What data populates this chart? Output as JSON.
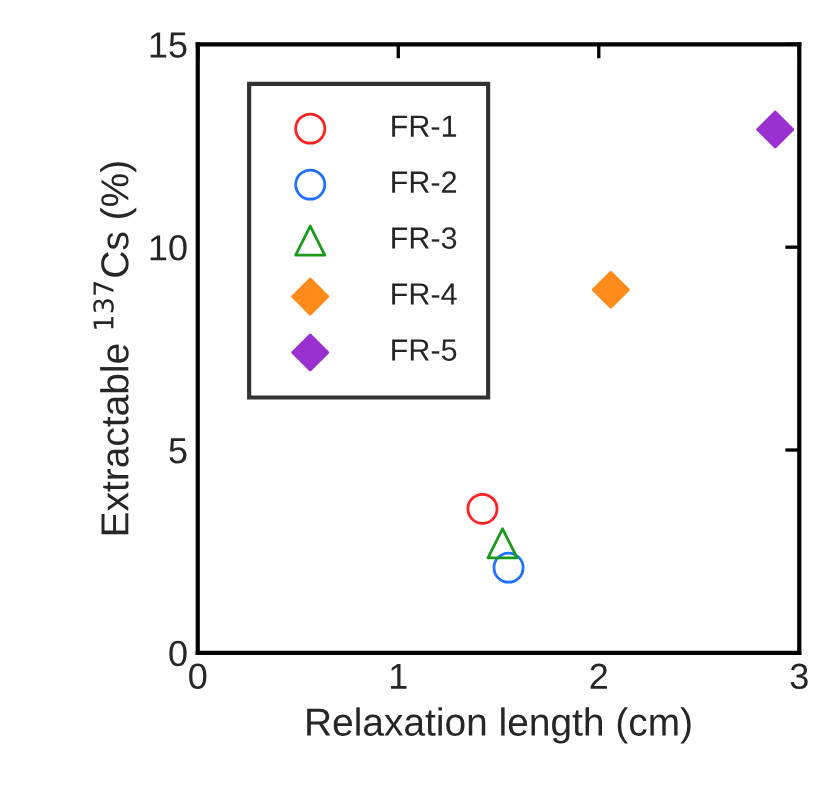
{
  "chart_data": {
    "type": "scatter",
    "xlabel": "Relaxation length (cm)",
    "ylabel": "Extractable $^{137}$Cs (%)",
    "xlim": [
      0,
      3
    ],
    "xticks": [
      0,
      1,
      2,
      3
    ],
    "ylim": [
      0,
      15
    ],
    "yticks": [
      0,
      5,
      10,
      15
    ],
    "grid": false,
    "legend": "top left",
    "series": [
      {
        "name": "FR-1",
        "color": "#ff2020",
        "x": [
          1.42
        ],
        "values": [
          3.55
        ],
        "marker": "circle"
      },
      {
        "name": "FR-2",
        "color": "#2070ff",
        "x": [
          1.55
        ],
        "values": [
          2.1
        ],
        "marker": "circle"
      },
      {
        "name": "FR-3",
        "color": "#1a9a1a",
        "x": [
          1.52
        ],
        "values": [
          2.7
        ],
        "marker": "triangle"
      },
      {
        "name": "FR-4",
        "color": "#ff8c1a",
        "x": [
          2.06
        ],
        "values": [
          8.95
        ],
        "marker": "diamond"
      },
      {
        "name": "FR-5",
        "color": "#9a30d0",
        "x": [
          2.88
        ],
        "values": [
          12.9
        ],
        "marker": "diamond"
      }
    ]
  }
}
